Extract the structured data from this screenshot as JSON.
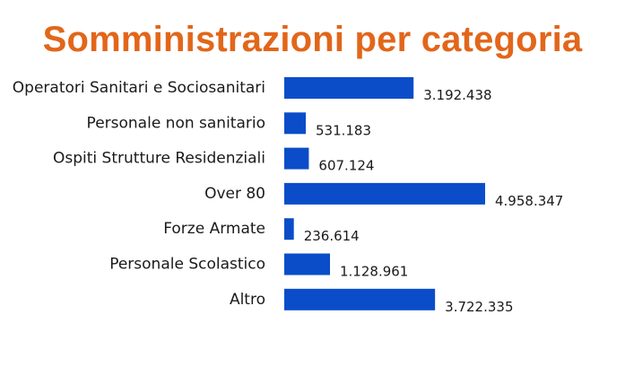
{
  "colors": {
    "title": "#e2661a",
    "bar": "#0b4dc9",
    "text": "#1a1a1a",
    "background": "#ffffff"
  },
  "chart_data": {
    "type": "bar",
    "orientation": "horizontal",
    "title": "Somministrazioni per categoria",
    "xlabel": "",
    "ylabel": "",
    "grid": false,
    "categories": [
      "Operatori Sanitari e Sociosanitari",
      "Personale non sanitario",
      "Ospiti Strutture Residenziali",
      "Over 80",
      "Forze Armate",
      "Personale Scolastico",
      "Altro"
    ],
    "values": [
      3192438,
      531183,
      607124,
      4958347,
      236614,
      1128961,
      3722335
    ],
    "value_labels": [
      "3.192.438",
      "531.183",
      "607.124",
      "4.958.347",
      "236.614",
      "1.128.961",
      "3.722.335"
    ]
  }
}
